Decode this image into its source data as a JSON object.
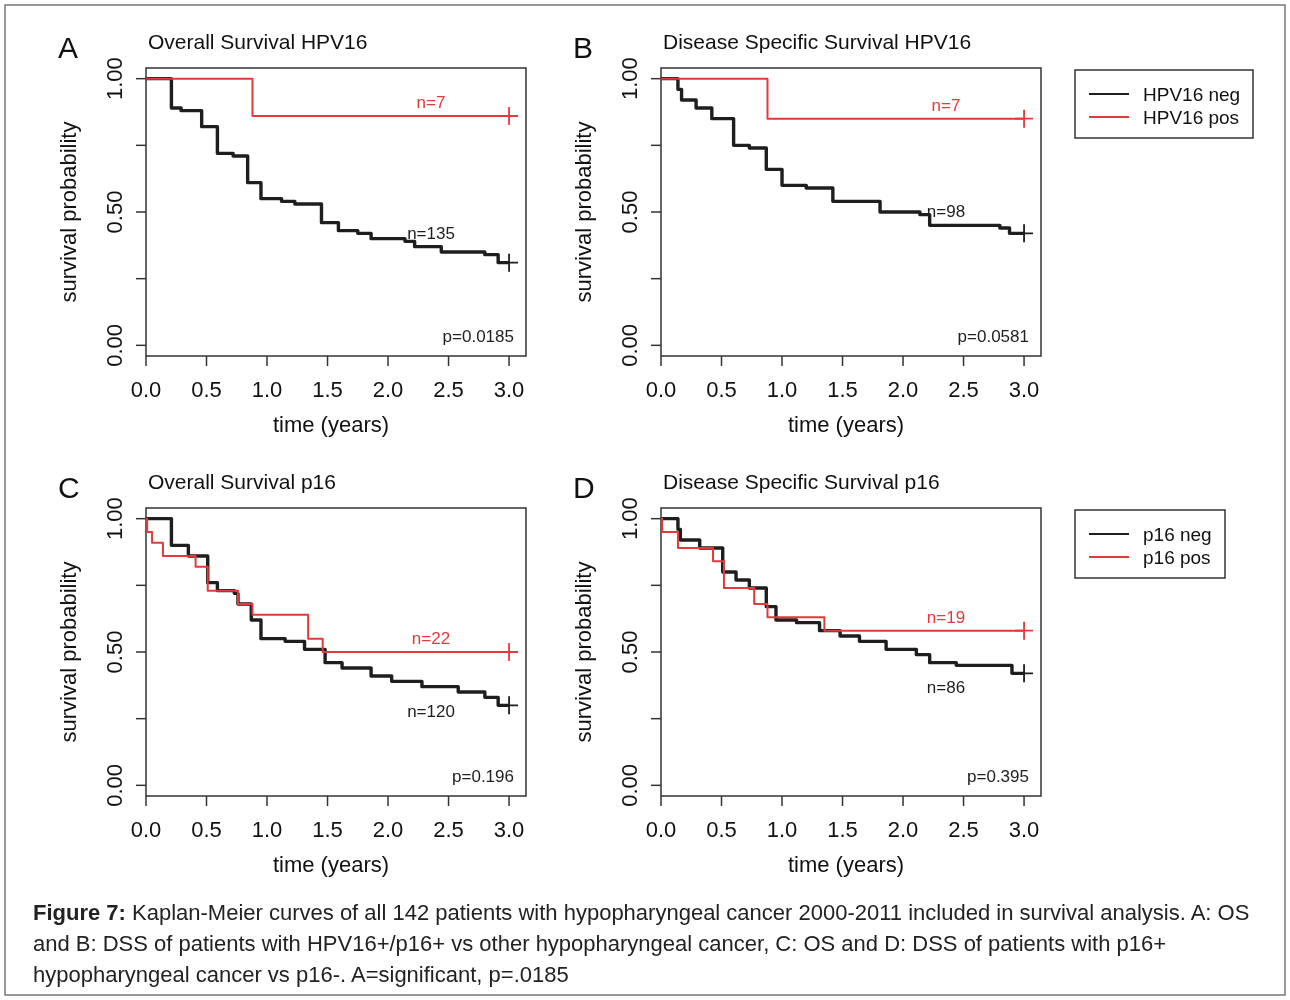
{
  "chart_data": [
    {
      "type": "step",
      "title": "Overall Survival HPV16",
      "xlabel": "time (years)",
      "ylabel": "survival probability",
      "xlim": [
        0,
        3.14
      ],
      "ylim": [
        -0.04,
        1.04
      ],
      "xticks": [
        {
          "value": 0,
          "label": "0.0"
        },
        {
          "value": 0.5,
          "label": "0.5"
        },
        {
          "value": 1,
          "label": "1.0"
        },
        {
          "value": 1.5,
          "label": "1.5"
        },
        {
          "value": 2,
          "label": "2.0"
        },
        {
          "value": 2.5,
          "label": "2.5"
        },
        {
          "value": 3,
          "label": "3.0"
        }
      ],
      "yticks": [
        {
          "value": 0,
          "label": "0.00"
        },
        {
          "value": 0.25,
          "label": null
        },
        {
          "value": 0.5,
          "label": "0.50"
        },
        {
          "value": 0.75,
          "label": null
        },
        {
          "value": 1,
          "label": "1.00"
        }
      ],
      "series": [
        {
          "color": "#1e1e1e",
          "x": [
            0,
            0.21,
            0.29,
            0.46,
            0.59,
            0.72,
            0.84,
            0.95,
            1.12,
            1.23,
            1.45,
            1.59,
            1.75,
            1.86,
            2.14,
            2.22,
            2.44,
            2.8,
            2.91,
            3.0
          ],
          "values": [
            1,
            0.89,
            0.88,
            0.82,
            0.72,
            0.71,
            0.61,
            0.55,
            0.54,
            0.53,
            0.46,
            0.43,
            0.42,
            0.4,
            0.39,
            0.37,
            0.35,
            0.34,
            0.31,
            0.31
          ]
        },
        {
          "color": "#e23a3a",
          "x": [
            0,
            0.88,
            3.0
          ],
          "values": [
            1,
            0.86,
            0.86
          ]
        },
        {
          "type": "scatter",
          "marker": "cross",
          "color": "#1e1e1e",
          "x": [
            3.0
          ],
          "values": [
            0.31
          ]
        },
        {
          "type": "scatter",
          "marker": "cross",
          "color": "#e23a3a",
          "x": [
            3.0
          ],
          "values": [
            0.86
          ]
        }
      ],
      "annotations": [
        "A",
        "p=0.0185",
        "n=135",
        "n=7"
      ]
    },
    {
      "type": "step",
      "title": "Disease Specific Survival HPV16",
      "xlabel": "time (years)",
      "ylabel": "survival probability",
      "xlim": [
        0,
        3.14
      ],
      "ylim": [
        -0.04,
        1.04
      ],
      "legend": "right",
      "xticks": [
        {
          "value": 0,
          "label": "0.0"
        },
        {
          "value": 0.5,
          "label": "0.5"
        },
        {
          "value": 1,
          "label": "1.0"
        },
        {
          "value": 1.5,
          "label": "1.5"
        },
        {
          "value": 2,
          "label": "2.0"
        },
        {
          "value": 2.5,
          "label": "2.5"
        },
        {
          "value": 3,
          "label": "3.0"
        }
      ],
      "yticks": [
        {
          "value": 0,
          "label": "0.00"
        },
        {
          "value": 0.25,
          "label": null
        },
        {
          "value": 0.5,
          "label": "0.50"
        },
        {
          "value": 0.75,
          "label": null
        },
        {
          "value": 1,
          "label": "1.00"
        }
      ],
      "series": [
        {
          "name": "HPV16 neg",
          "color": "#1e1e1e",
          "x": [
            0,
            0.14,
            0.17,
            0.29,
            0.42,
            0.6,
            0.73,
            0.87,
            1.0,
            1.2,
            1.42,
            1.59,
            1.81,
            2.14,
            2.22,
            2.44,
            2.8,
            2.88,
            3.0
          ],
          "values": [
            1,
            0.96,
            0.92,
            0.89,
            0.85,
            0.75,
            0.74,
            0.66,
            0.6,
            0.59,
            0.54,
            0.54,
            0.5,
            0.49,
            0.45,
            0.45,
            0.44,
            0.42,
            0.42
          ]
        },
        {
          "name": "HPV16 pos",
          "color": "#e23a3a",
          "x": [
            0,
            0.88,
            3.0
          ],
          "values": [
            1,
            0.85,
            0.85
          ]
        },
        {
          "type": "scatter",
          "marker": "cross",
          "color": "#1e1e1e",
          "x": [
            3.0
          ],
          "values": [
            0.42
          ]
        },
        {
          "type": "scatter",
          "marker": "cross",
          "color": "#e23a3a",
          "x": [
            3.0
          ],
          "values": [
            0.85
          ]
        }
      ],
      "annotations": [
        "B",
        "p=0.0581",
        "n=98",
        "n=7"
      ]
    },
    {
      "type": "step",
      "title": "Overall Survival p16",
      "xlabel": "time (years)",
      "ylabel": "survival probability",
      "xlim": [
        0,
        3.14
      ],
      "ylim": [
        -0.04,
        1.04
      ],
      "xticks": [
        {
          "value": 0,
          "label": "0.0"
        },
        {
          "value": 0.5,
          "label": "0.5"
        },
        {
          "value": 1,
          "label": "1.0"
        },
        {
          "value": 1.5,
          "label": "1.5"
        },
        {
          "value": 2,
          "label": "2.0"
        },
        {
          "value": 2.5,
          "label": "2.5"
        },
        {
          "value": 3,
          "label": "3.0"
        }
      ],
      "yticks": [
        {
          "value": 0,
          "label": "0.00"
        },
        {
          "value": 0.25,
          "label": null
        },
        {
          "value": 0.5,
          "label": "0.50"
        },
        {
          "value": 0.75,
          "label": null
        },
        {
          "value": 1,
          "label": "1.00"
        }
      ],
      "series": [
        {
          "color": "#1e1e1e",
          "x": [
            0,
            0.21,
            0.35,
            0.51,
            0.59,
            0.73,
            0.76,
            0.87,
            0.95,
            1.15,
            1.31,
            1.48,
            1.62,
            1.86,
            2.03,
            2.28,
            2.58,
            2.8,
            2.91,
            3.0
          ],
          "values": [
            1,
            0.9,
            0.86,
            0.76,
            0.73,
            0.72,
            0.68,
            0.62,
            0.55,
            0.54,
            0.51,
            0.46,
            0.44,
            0.41,
            0.39,
            0.37,
            0.35,
            0.33,
            0.3,
            0.3
          ]
        },
        {
          "color": "#e23a3a",
          "x": [
            0,
            0.01,
            0.05,
            0.14,
            0.41,
            0.51,
            0.76,
            0.88,
            1.34,
            1.46,
            3.0
          ],
          "values": [
            1,
            0.95,
            0.91,
            0.86,
            0.82,
            0.73,
            0.68,
            0.64,
            0.55,
            0.5,
            0.5
          ]
        },
        {
          "type": "scatter",
          "marker": "cross",
          "color": "#1e1e1e",
          "x": [
            3.0
          ],
          "values": [
            0.3
          ]
        },
        {
          "type": "scatter",
          "marker": "cross",
          "color": "#e23a3a",
          "x": [
            3.0
          ],
          "values": [
            0.5
          ]
        }
      ],
      "annotations": [
        "C",
        "p=0.196",
        "n=120",
        "n=22"
      ]
    },
    {
      "type": "step",
      "title": "Disease Specific Survival p16",
      "xlabel": "time (years)",
      "ylabel": "survival probability",
      "xlim": [
        0,
        3.14
      ],
      "ylim": [
        -0.04,
        1.04
      ],
      "legend": "right",
      "xticks": [
        {
          "value": 0,
          "label": "0.0"
        },
        {
          "value": 0.5,
          "label": "0.5"
        },
        {
          "value": 1,
          "label": "1.0"
        },
        {
          "value": 1.5,
          "label": "1.5"
        },
        {
          "value": 2,
          "label": "2.0"
        },
        {
          "value": 2.5,
          "label": "2.5"
        },
        {
          "value": 3,
          "label": "3.0"
        }
      ],
      "yticks": [
        {
          "value": 0,
          "label": "0.00"
        },
        {
          "value": 0.25,
          "label": null
        },
        {
          "value": 0.5,
          "label": "0.50"
        },
        {
          "value": 0.75,
          "label": null
        },
        {
          "value": 1,
          "label": "1.00"
        }
      ],
      "series": [
        {
          "name": "p16 neg",
          "color": "#1e1e1e",
          "x": [
            0,
            0.14,
            0.16,
            0.32,
            0.51,
            0.62,
            0.73,
            0.87,
            0.95,
            1.12,
            1.31,
            1.48,
            1.64,
            1.86,
            2.11,
            2.22,
            2.44,
            2.8,
            2.9,
            3.0
          ],
          "values": [
            1,
            0.96,
            0.92,
            0.89,
            0.8,
            0.77,
            0.74,
            0.67,
            0.62,
            0.61,
            0.58,
            0.56,
            0.54,
            0.51,
            0.49,
            0.46,
            0.45,
            0.45,
            0.42,
            0.42
          ]
        },
        {
          "name": "p16 pos",
          "color": "#e23a3a",
          "x": [
            0,
            0.01,
            0.14,
            0.43,
            0.52,
            0.77,
            0.88,
            1.35,
            3.0
          ],
          "values": [
            1,
            0.95,
            0.89,
            0.84,
            0.74,
            0.68,
            0.63,
            0.58,
            0.58
          ]
        },
        {
          "type": "scatter",
          "marker": "cross",
          "color": "#1e1e1e",
          "x": [
            3.0
          ],
          "values": [
            0.42
          ]
        },
        {
          "type": "scatter",
          "marker": "cross",
          "color": "#e23a3a",
          "x": [
            3.0
          ],
          "values": [
            0.58
          ]
        }
      ],
      "annotations": [
        "D",
        "p=0.395",
        "n=86",
        "n=19",
        "Figure 7: Kaplan-Meier curves of all 142 patients with hypopharyngeal cancer 2000-2011 included in survival analysis. A: OS and B: DSS of patients with HPV16+/p16+ vs other hypopharyngeal cancer, C: OS and D: DSS of patients with p16+ hypopharyngeal cancer vs p16-. A=significant, p=.0185"
      ]
    }
  ]
}
